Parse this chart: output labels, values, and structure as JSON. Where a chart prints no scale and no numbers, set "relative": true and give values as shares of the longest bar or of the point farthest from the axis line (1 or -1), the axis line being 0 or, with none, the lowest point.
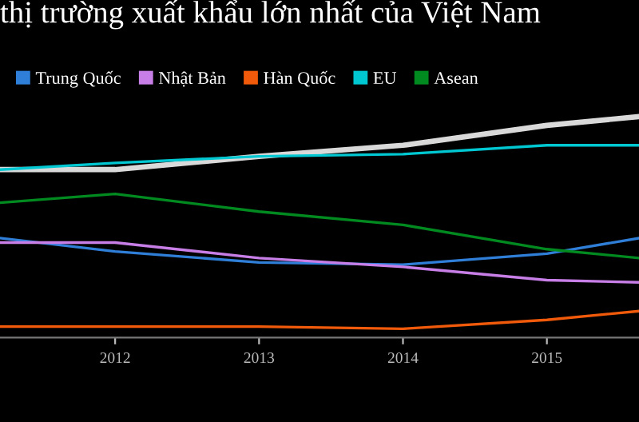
{
  "chart_data": {
    "type": "line",
    "title": "thị trường xuất khẩu lớn nhất của Việt Nam",
    "relative": true,
    "x": [
      2011.2,
      2012,
      2013,
      2014,
      2015,
      2015.64
    ],
    "xlim": [
      2011.2,
      2015.64
    ],
    "xticks": [
      2012,
      2013,
      2014,
      2015
    ],
    "legend": "top left",
    "marker": "none",
    "line_style": "solid",
    "series": [
      {
        "color": "#d9d9d9",
        "values": [
          0.76,
          0.76,
          0.82,
          0.87,
          0.96,
          1.0
        ]
      },
      {
        "name": "Trung Quốc",
        "color": "#2f7fd8",
        "values": [
          0.45,
          0.39,
          0.34,
          0.33,
          0.38,
          0.45
        ]
      },
      {
        "name": "Nhật Bản",
        "color": "#c77ee6",
        "values": [
          0.43,
          0.43,
          0.36,
          0.32,
          0.26,
          0.25
        ]
      },
      {
        "name": "Hàn Quốc",
        "color": "#f05a0a",
        "values": [
          0.05,
          0.05,
          0.05,
          0.04,
          0.08,
          0.12
        ]
      },
      {
        "name": "EU",
        "color": "#00c8d2",
        "values": [
          0.76,
          0.79,
          0.82,
          0.83,
          0.87,
          0.87
        ]
      },
      {
        "name": "Asean",
        "color": "#008a20",
        "values": [
          0.61,
          0.65,
          0.57,
          0.51,
          0.4,
          0.36
        ]
      }
    ]
  }
}
